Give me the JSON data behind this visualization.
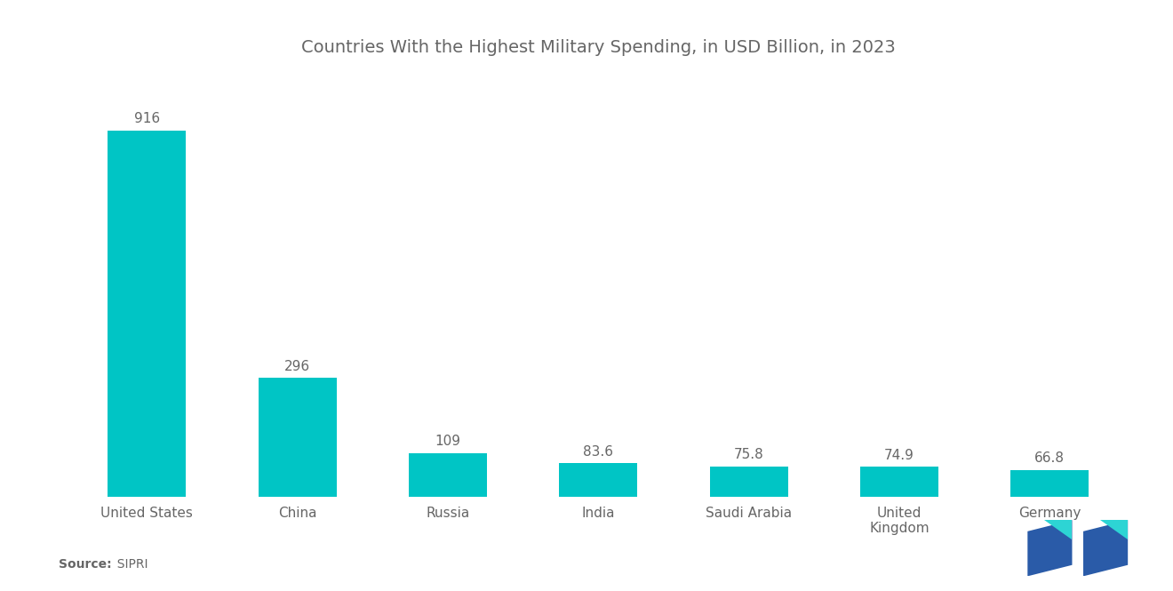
{
  "title": "Countries With the Highest Military Spending, in USD Billion, in 2023",
  "x_labels": [
    "United States",
    "China",
    "Russia",
    "India",
    "Saudi Arabia",
    "United\nKingdom",
    "Germany"
  ],
  "values": [
    916,
    296,
    109,
    83.6,
    75.8,
    74.9,
    66.8
  ],
  "bar_color": "#00C5C5",
  "background_color": "#ffffff",
  "title_fontsize": 14,
  "label_fontsize": 11,
  "value_fontsize": 11,
  "source_bold": "Source:",
  "source_normal": "  SIPRI",
  "source_fontsize": 10,
  "ylim": [
    0,
    1050
  ],
  "logo_blue": "#2A5BA8",
  "logo_teal": "#2DD4D4",
  "text_color": "#666666"
}
